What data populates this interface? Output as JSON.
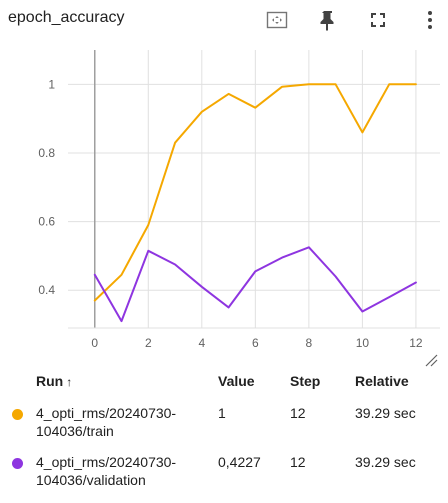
{
  "header": {
    "title": "epoch_accuracy",
    "icons": [
      "fit-domain-icon",
      "pin-icon",
      "fullscreen-icon",
      "more-vert-icon"
    ]
  },
  "colors": {
    "train": "#f5a800",
    "validation": "#8e35e0",
    "grid": "#e0e0e0",
    "axis_text": "#616161",
    "y_axis_line": "#9e9e9e"
  },
  "table": {
    "headers": {
      "run": "Run",
      "sort": "↑",
      "value": "Value",
      "step": "Step",
      "relative": "Relative"
    },
    "rows": [
      {
        "run_line1": "4_opti_rms/20240730-",
        "run_line2": "104036/train",
        "value": "1",
        "step": "12",
        "relative": "39.29 sec",
        "color": "#f5a800"
      },
      {
        "run_line1": "4_opti_rms/20240730-",
        "run_line2": "104036/validation",
        "value": "0,4227",
        "step": "12",
        "relative": "39.29 sec",
        "color": "#8e35e0"
      }
    ]
  },
  "chart_data": {
    "type": "line",
    "x_ticks": [
      0,
      2,
      4,
      6,
      8,
      10,
      12
    ],
    "y_ticks": [
      0.4,
      0.6,
      0.8,
      1
    ],
    "y_tick_labels": [
      "0.4",
      "0.6",
      "0.8",
      "1"
    ],
    "xlim": [
      -1,
      12.9
    ],
    "ylim": [
      0.29,
      1.1
    ],
    "grid": true,
    "series": [
      {
        "name": "4_opti_rms/20240730-104036/train",
        "color": "#f5a800",
        "x": [
          0,
          1,
          2,
          3,
          4,
          5,
          6,
          7,
          8,
          9,
          10,
          11,
          12
        ],
        "y": [
          0.37,
          0.445,
          0.59,
          0.83,
          0.92,
          0.972,
          0.932,
          0.993,
          1.0,
          1.0,
          0.86,
          1.0,
          1.0
        ]
      },
      {
        "name": "4_opti_rms/20240730-104036/validation",
        "color": "#8e35e0",
        "x": [
          0,
          1,
          2,
          3,
          4,
          5,
          6,
          7,
          8,
          9,
          10,
          11,
          12
        ],
        "y": [
          0.445,
          0.31,
          0.515,
          0.475,
          0.41,
          0.35,
          0.455,
          0.495,
          0.525,
          0.44,
          0.338,
          0.38,
          0.4227
        ]
      }
    ]
  }
}
